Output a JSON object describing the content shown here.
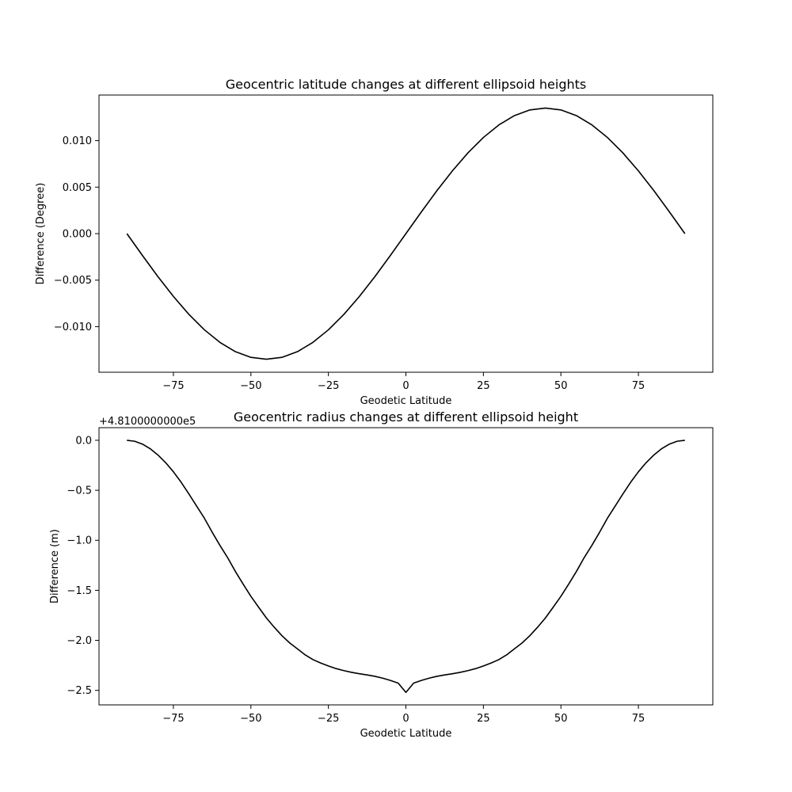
{
  "chart_data": [
    {
      "type": "line",
      "title": "Geocentric latitude changes at different ellipsoid heights",
      "xlabel": "Geodetic Latitude",
      "ylabel": "Difference (Degree)",
      "xlim": [
        -99,
        99
      ],
      "ylim": [
        -0.0149,
        0.0149
      ],
      "grid": false,
      "x_ticks": [
        -75,
        -50,
        -25,
        0,
        25,
        50,
        75
      ],
      "x_tick_labels": [
        "−75",
        "−50",
        "−25",
        "0",
        "25",
        "50",
        "75"
      ],
      "y_ticks": [
        -0.01,
        -0.005,
        0.0,
        0.005,
        0.01
      ],
      "y_tick_labels": [
        "−0.010",
        "−0.005",
        "0.000",
        "0.005",
        "0.010"
      ],
      "series_color": "#000000",
      "series": [
        {
          "x": [
            -90,
            -85,
            -80,
            -75,
            -70,
            -65,
            -60,
            -55,
            -50,
            -45,
            -40,
            -35,
            -30,
            -25,
            -20,
            -15,
            -10,
            -5,
            0,
            5,
            10,
            15,
            20,
            25,
            30,
            35,
            40,
            45,
            50,
            55,
            60,
            65,
            70,
            75,
            80,
            85,
            90
          ],
          "values": [
            0.0,
            -0.00234,
            -0.00462,
            -0.00675,
            -0.00868,
            -0.01034,
            -0.01169,
            -0.01269,
            -0.0133,
            -0.0135,
            -0.0133,
            -0.01269,
            -0.01169,
            -0.01034,
            -0.00868,
            -0.00675,
            -0.00462,
            -0.00234,
            0.0,
            0.00234,
            0.00462,
            0.00675,
            0.00868,
            0.01034,
            0.01169,
            0.01269,
            0.0133,
            0.0135,
            0.0133,
            0.01269,
            0.01169,
            0.01034,
            0.00868,
            0.00675,
            0.00462,
            0.00234,
            0.0
          ]
        }
      ]
    },
    {
      "type": "line",
      "title": "Geocentric radius changes at different ellipsoid height",
      "xlabel": "Geodetic Latitude",
      "ylabel": "Difference (m)",
      "offset_text": "+4.8100000000e5",
      "xlim": [
        -99,
        99
      ],
      "ylim": [
        -2.645,
        0.126
      ],
      "grid": false,
      "x_ticks": [
        -75,
        -50,
        -25,
        0,
        25,
        50,
        75
      ],
      "x_tick_labels": [
        "−75",
        "−50",
        "−25",
        "0",
        "25",
        "50",
        "75"
      ],
      "y_ticks": [
        -2.5,
        -2.0,
        -1.5,
        -1.0,
        -0.5,
        0.0
      ],
      "y_tick_labels": [
        "−2.5",
        "−2.0",
        "−1.5",
        "−1.0",
        "−0.5",
        "0.0"
      ],
      "series_color": "#000000",
      "series": [
        {
          "x": [
            -90,
            -87.5,
            -85,
            -82.5,
            -80,
            -77.5,
            -75,
            -72.5,
            -70,
            -67.5,
            -65,
            -62.5,
            -60,
            -57.5,
            -55,
            -52.5,
            -50,
            -47.5,
            -45,
            -42.5,
            -40,
            -37.5,
            -35,
            -32.5,
            -30,
            -27.5,
            -25,
            -22.5,
            -20,
            -17.5,
            -15,
            -12.5,
            -10,
            -7.5,
            -5,
            -2.5,
            0,
            2.5,
            5,
            7.5,
            10,
            12.5,
            15,
            17.5,
            20,
            22.5,
            25,
            27.5,
            30,
            32.5,
            35,
            37.5,
            40,
            42.5,
            45,
            47.5,
            50,
            52.5,
            55,
            57.5,
            60,
            62.5,
            65,
            67.5,
            70,
            72.5,
            75,
            77.5,
            80,
            82.5,
            85,
            87.5,
            90
          ],
          "values": [
            0.0,
            -0.0096,
            -0.0379,
            -0.0842,
            -0.1468,
            -0.2235,
            -0.315,
            -0.4194,
            -0.5366,
            -0.6581,
            -0.7792,
            -0.9184,
            -1.05,
            -1.1736,
            -1.3114,
            -1.4383,
            -1.56,
            -1.6692,
            -1.776,
            -1.8679,
            -1.9529,
            -2.0254,
            -2.0852,
            -2.1449,
            -2.1924,
            -2.2265,
            -2.2562,
            -2.2824,
            -2.3025,
            -2.3198,
            -2.3338,
            -2.3456,
            -2.3597,
            -2.3779,
            -2.4008,
            -2.4269,
            -2.52,
            -2.4269,
            -2.4008,
            -2.3779,
            -2.3597,
            -2.3456,
            -2.3338,
            -2.3198,
            -2.3025,
            -2.2824,
            -2.2562,
            -2.2265,
            -2.1924,
            -2.1449,
            -2.0852,
            -2.0254,
            -1.9529,
            -1.8679,
            -1.776,
            -1.6692,
            -1.56,
            -1.4383,
            -1.3114,
            -1.1736,
            -1.05,
            -0.9184,
            -0.7792,
            -0.6581,
            -0.5366,
            -0.4194,
            -0.315,
            -0.2235,
            -0.1468,
            -0.0842,
            -0.0379,
            -0.0096,
            0.0
          ]
        }
      ]
    }
  ]
}
